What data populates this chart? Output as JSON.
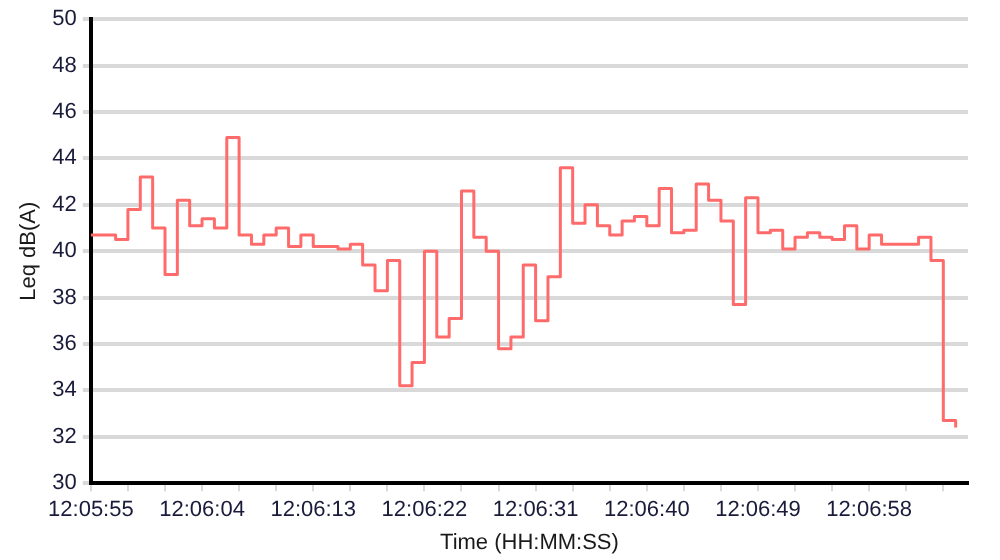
{
  "chart_data": {
    "type": "step",
    "xlabel": "Time (HH:MM:SS)",
    "ylabel": "Leq dB(A)",
    "x": [
      12.098611,
      12.098889,
      12.099167,
      12.099444,
      12.099722,
      12.1,
      12.100278,
      12.100556,
      12.100833,
      12.101111,
      12.101389,
      12.101667,
      12.101944,
      12.102222,
      12.1025,
      12.102778,
      12.103056,
      12.103333,
      12.103611,
      12.103889,
      12.104167,
      12.104444,
      12.104722,
      12.105,
      12.105278,
      12.105556,
      12.105833,
      12.106111,
      12.106389,
      12.106667,
      12.106944,
      12.107222,
      12.1075,
      12.107778,
      12.108056,
      12.108333,
      12.108611,
      12.108889,
      12.109167,
      12.109444,
      12.109722,
      12.11,
      12.110278,
      12.110556,
      12.110833,
      12.111111,
      12.111389,
      12.111667,
      12.111944,
      12.112222,
      12.1125,
      12.112778,
      12.113056,
      12.113333,
      12.113611,
      12.113889,
      12.114167,
      12.114444,
      12.114722,
      12.115,
      12.115278,
      12.115556,
      12.115833,
      12.116111,
      12.116389,
      12.116667,
      12.116944,
      12.117222,
      12.1175,
      12.117778,
      12.118056
    ],
    "series": [
      {
        "color": "#ff6b6b",
        "values": [
          40.7,
          40.7,
          40.5,
          41.8,
          43.2,
          41.0,
          39.0,
          42.2,
          41.1,
          41.4,
          41.0,
          44.9,
          40.7,
          40.3,
          40.7,
          41.0,
          40.2,
          40.7,
          40.2,
          40.2,
          40.1,
          40.3,
          39.4,
          38.3,
          39.6,
          34.2,
          35.2,
          40.0,
          36.3,
          37.1,
          42.6,
          40.6,
          40.0,
          35.8,
          36.3,
          39.4,
          37.0,
          38.9,
          43.6,
          41.2,
          42.0,
          41.1,
          40.7,
          41.3,
          41.5,
          41.1,
          42.7,
          40.8,
          40.9,
          42.9,
          42.2,
          41.3,
          37.7,
          42.3,
          40.8,
          40.9,
          40.1,
          40.6,
          40.8,
          40.6,
          40.5,
          41.1,
          40.1,
          40.7,
          40.3,
          40.3,
          40.3,
          40.6,
          39.6,
          32.7,
          32.4
        ]
      }
    ],
    "xlim": [
      12.098611,
      12.118333
    ],
    "xticks": [
      {
        "value": 12.098611,
        "label": "12:05:55"
      },
      {
        "value": 12.099444,
        "label": null
      },
      {
        "value": 12.100278,
        "label": null
      },
      {
        "value": 12.101111,
        "label": "12:06:04"
      },
      {
        "value": 12.101944,
        "label": null
      },
      {
        "value": 12.102778,
        "label": null
      },
      {
        "value": 12.103611,
        "label": "12:06:13"
      },
      {
        "value": 12.104444,
        "label": null
      },
      {
        "value": 12.105278,
        "label": null
      },
      {
        "value": 12.106111,
        "label": "12:06:22"
      },
      {
        "value": 12.106944,
        "label": null
      },
      {
        "value": 12.107778,
        "label": null
      },
      {
        "value": 12.108611,
        "label": "12:06:31"
      },
      {
        "value": 12.109444,
        "label": null
      },
      {
        "value": 12.110278,
        "label": null
      },
      {
        "value": 12.111111,
        "label": "12:06:40"
      },
      {
        "value": 12.111944,
        "label": null
      },
      {
        "value": 12.112778,
        "label": null
      },
      {
        "value": 12.113611,
        "label": "12:06:49"
      },
      {
        "value": 12.114444,
        "label": null
      },
      {
        "value": 12.115278,
        "label": null
      },
      {
        "value": 12.116111,
        "label": "12:06:58"
      },
      {
        "value": 12.116944,
        "label": null
      },
      {
        "value": 12.117778,
        "label": null
      }
    ],
    "ylim": [
      30,
      50
    ],
    "yticks": [
      30,
      32,
      34,
      36,
      38,
      40,
      42,
      44,
      46,
      48,
      50
    ],
    "grid": "y",
    "legend": false,
    "marker": "none",
    "line_style": "solid"
  }
}
